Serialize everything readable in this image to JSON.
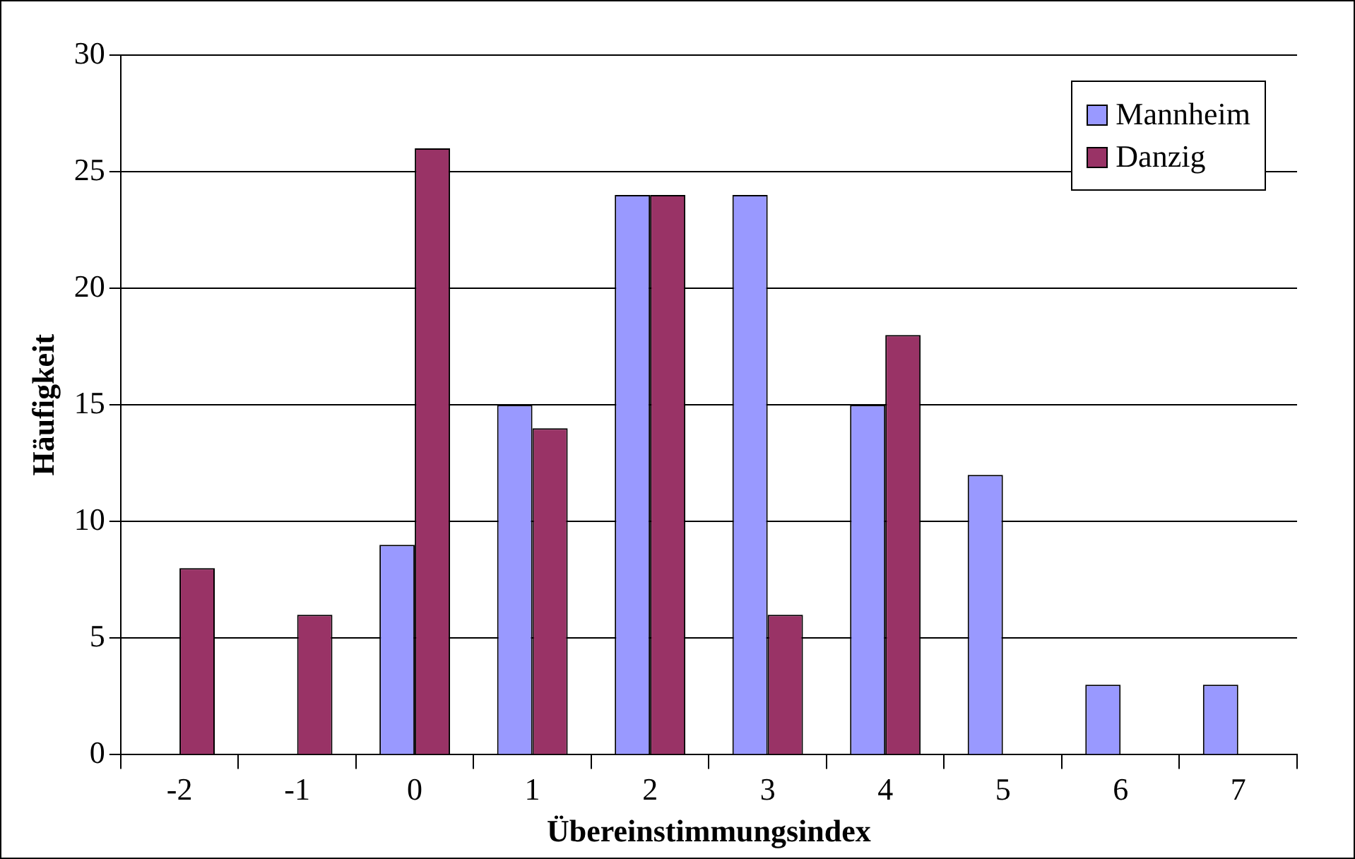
{
  "chart_data": {
    "type": "bar",
    "xlabel": "Übereinstimmungsindex",
    "ylabel": "Häufigkeit",
    "categories": [
      "-2",
      "-1",
      "0",
      "1",
      "2",
      "3",
      "4",
      "5",
      "6",
      "7"
    ],
    "series": [
      {
        "name": "Mannheim",
        "color": "#9999ff",
        "values": [
          0,
          0,
          9,
          15,
          24,
          24,
          15,
          12,
          3,
          3
        ]
      },
      {
        "name": "Danzig",
        "color": "#993366",
        "values": [
          8,
          6,
          26,
          14,
          24,
          6,
          18,
          0,
          0,
          0
        ]
      }
    ],
    "ylim": [
      0,
      30
    ],
    "yticks": [
      0,
      5,
      10,
      15,
      20,
      25,
      30
    ],
    "grid": "y",
    "legend": "top right"
  }
}
